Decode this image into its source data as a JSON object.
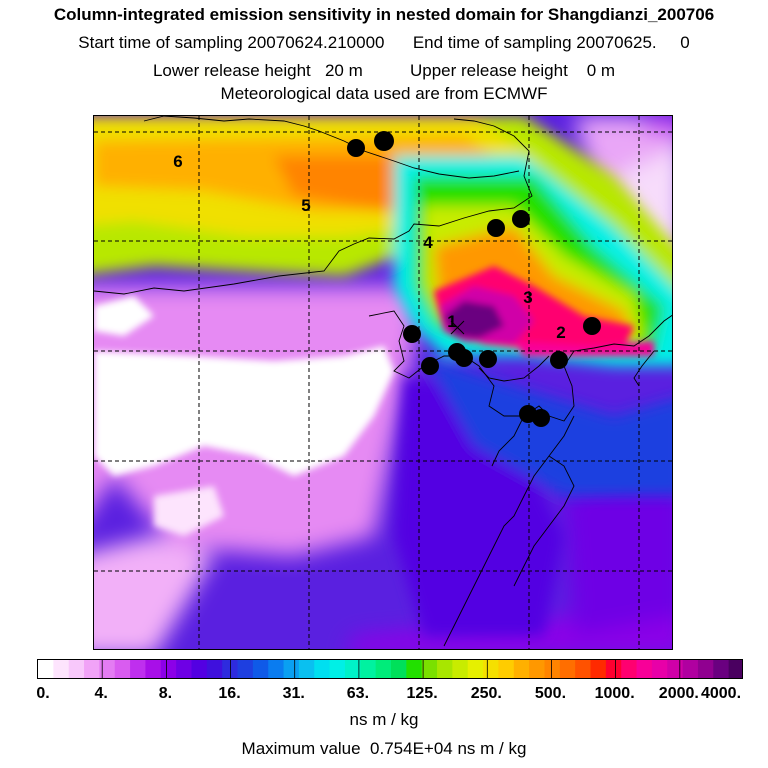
{
  "header": {
    "title": "Column-integrated emission sensitivity in nested domain for Shangdianzi_200706",
    "start_time": "Start time of sampling 20070624.210000",
    "end_time": "End time of sampling 20070625.     0",
    "lower_release": "Lower release height   20 m",
    "upper_release": "Upper release height    0 m",
    "met_source": "Meteorological data used are from ECMWF"
  },
  "contour_labels": [
    "1",
    "2",
    "3",
    "4",
    "5",
    "6"
  ],
  "legend": {
    "tick_labels": [
      "0.",
      "4.",
      "8.",
      "16.",
      "31.",
      "63.",
      "125.",
      "250.",
      "500.",
      "1000.",
      "2000.",
      "4000."
    ],
    "unit": "ns m / kg",
    "colors": [
      "#ffffff",
      "#fde4fd",
      "#f8c8fb",
      "#f1a3f7",
      "#e47cf3",
      "#d95cf0",
      "#bf2fee",
      "#a80fe8",
      "#8c00e8",
      "#6e00e5",
      "#5300e2",
      "#3f10dd",
      "#2e2bde",
      "#1e3fe0",
      "#0f5ae8",
      "#0a7cf0",
      "#0aa0f2",
      "#0ac0f0",
      "#00dff0",
      "#00f0e6",
      "#00f2c8",
      "#00f2a0",
      "#00ec7a",
      "#00e05a",
      "#22e000",
      "#7ae000",
      "#a8e600",
      "#c8ec00",
      "#e6f000",
      "#f5e000",
      "#ffcc00",
      "#ffb000",
      "#ff9800",
      "#ff8400",
      "#ff6e00",
      "#ff5200",
      "#ff2a00",
      "#ff0030",
      "#ff0070",
      "#f80098",
      "#e800a8",
      "#d000a8",
      "#b000a0",
      "#900090",
      "#6a0080",
      "#4a0060"
    ]
  },
  "max_value": "Maximum value  0.754E+04 ns m / kg"
}
